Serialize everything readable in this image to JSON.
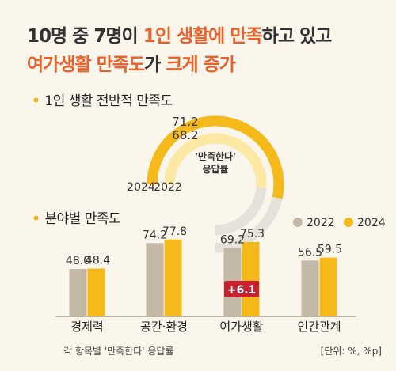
{
  "headline": {
    "line1_prefix": "10명 중 7명이 ",
    "line1_highlight": "1인 생활에 만족",
    "line1_suffix": "하고 있고",
    "line2_highlight1": "여가생활 만족도",
    "line2_mid": "가 ",
    "line2_highlight2": "크게 증가"
  },
  "section1": {
    "title": "1인 생활 전반적 만족도"
  },
  "section2": {
    "title": "분야별 만족도"
  },
  "colors": {
    "y2022": "#c3b7a6",
    "y2024": "#f6b91a",
    "accent": "#e8602a",
    "badge": "#c8202f",
    "ring_bg": "#e6e2db",
    "inner_light": "#fde9a4"
  },
  "chart_data": [
    {
      "type": "gauge",
      "title": "1인 생활 전반적 만족도",
      "center_label": [
        "'만족한다'",
        "응답률"
      ],
      "series": [
        {
          "name": "2024",
          "value": 71.2
        },
        {
          "name": "2022",
          "value": 68.2
        }
      ],
      "labels": {
        "v2024": "71.2",
        "v2022": "68.2",
        "n2024": "2024",
        "n2022": "2022"
      },
      "max": 100
    },
    {
      "type": "bar",
      "title": "분야별 만족도",
      "categories": [
        "경제력",
        "공간·환경",
        "여가생활",
        "인간관계"
      ],
      "series": [
        {
          "name": "2022",
          "values": [
            48.0,
            74.2,
            69.2,
            56.5
          ]
        },
        {
          "name": "2024",
          "values": [
            48.4,
            77.8,
            75.3,
            59.5
          ]
        }
      ],
      "value_labels": {
        "2022": [
          "48.0",
          "74.2",
          "69.2",
          "56.5"
        ],
        "2024": [
          "48.4",
          "77.8",
          "75.3",
          "59.5"
        ]
      },
      "annotation": {
        "category_index": 2,
        "text": "+6.1"
      },
      "legend": {
        "placement": "top-right",
        "items": [
          "2022",
          "2024"
        ]
      },
      "footnote": "각 항목별 '만족한다' 응답률",
      "unit": "[단위: %, %p]"
    }
  ]
}
